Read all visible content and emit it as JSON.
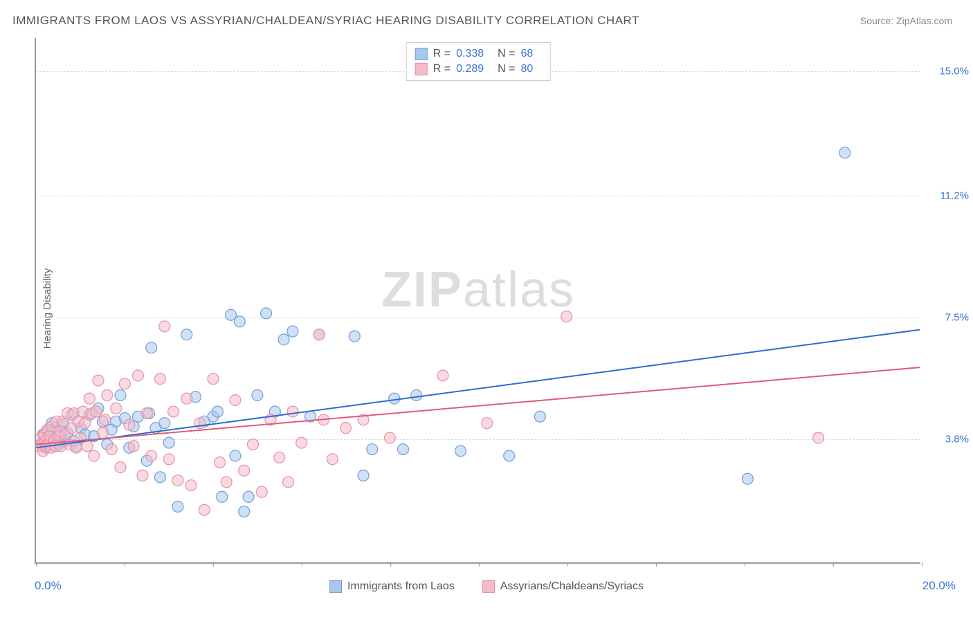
{
  "title": "IMMIGRANTS FROM LAOS VS ASSYRIAN/CHALDEAN/SYRIAC HEARING DISABILITY CORRELATION CHART",
  "source": "Source: ZipAtlas.com",
  "y_axis_label": "Hearing Disability",
  "watermark_zip": "ZIP",
  "watermark_atlas": "atlas",
  "chart": {
    "type": "scatter-with-regression",
    "x_min": 0.0,
    "x_max": 20.0,
    "x_min_label": "0.0%",
    "x_max_label": "20.0%",
    "x_ticks": [
      0,
      2,
      4,
      6,
      8,
      10,
      12,
      14,
      16,
      18,
      20
    ],
    "y_min": 0.0,
    "y_max": 16.0,
    "y_gridlines": [
      3.8,
      7.5,
      11.2,
      15.0
    ],
    "y_tick_labels": [
      "3.8%",
      "7.5%",
      "11.2%",
      "15.0%"
    ],
    "background_color": "#ffffff",
    "grid_color": "#dddddd",
    "axis_color": "#999999",
    "marker_radius": 8,
    "marker_opacity": 0.55,
    "line_width": 2,
    "series": [
      {
        "name": "Immigrants from Laos",
        "color_fill": "#a9c7ec",
        "color_stroke": "#6f9fd8",
        "line_color": "#2d6cd2",
        "R": "0.338",
        "N": "68",
        "regression": {
          "x1": 0.0,
          "y1": 3.5,
          "x2": 20.0,
          "y2": 7.1
        },
        "points": [
          [
            0.1,
            3.6
          ],
          [
            0.15,
            3.9
          ],
          [
            0.2,
            3.5
          ],
          [
            0.25,
            4.0
          ],
          [
            0.3,
            3.7
          ],
          [
            0.35,
            4.25
          ],
          [
            0.4,
            3.6
          ],
          [
            0.45,
            4.1
          ],
          [
            0.5,
            3.6
          ],
          [
            0.55,
            3.85
          ],
          [
            0.6,
            4.2
          ],
          [
            0.65,
            3.7
          ],
          [
            0.7,
            3.95
          ],
          [
            0.8,
            4.5
          ],
          [
            0.85,
            3.7
          ],
          [
            0.9,
            3.55
          ],
          [
            1.0,
            4.1
          ],
          [
            1.1,
            3.9
          ],
          [
            1.2,
            4.5
          ],
          [
            1.3,
            3.85
          ],
          [
            1.4,
            4.7
          ],
          [
            1.5,
            4.3
          ],
          [
            1.6,
            3.6
          ],
          [
            1.7,
            4.05
          ],
          [
            1.8,
            4.3
          ],
          [
            1.9,
            5.1
          ],
          [
            2.0,
            4.4
          ],
          [
            2.1,
            3.5
          ],
          [
            2.2,
            4.15
          ],
          [
            2.3,
            4.45
          ],
          [
            2.5,
            3.1
          ],
          [
            2.55,
            4.55
          ],
          [
            2.6,
            6.55
          ],
          [
            2.7,
            4.1
          ],
          [
            2.8,
            2.6
          ],
          [
            2.9,
            4.25
          ],
          [
            3.0,
            3.65
          ],
          [
            3.2,
            1.7
          ],
          [
            3.4,
            6.95
          ],
          [
            3.6,
            5.05
          ],
          [
            3.8,
            4.3
          ],
          [
            4.0,
            4.45
          ],
          [
            4.1,
            4.6
          ],
          [
            4.2,
            2.0
          ],
          [
            4.4,
            7.55
          ],
          [
            4.5,
            3.25
          ],
          [
            4.6,
            7.35
          ],
          [
            4.7,
            1.55
          ],
          [
            4.8,
            2.0
          ],
          [
            5.0,
            5.1
          ],
          [
            5.2,
            7.6
          ],
          [
            5.4,
            4.6
          ],
          [
            5.6,
            6.8
          ],
          [
            5.8,
            7.05
          ],
          [
            6.2,
            4.45
          ],
          [
            6.4,
            6.95
          ],
          [
            7.2,
            6.9
          ],
          [
            7.4,
            2.65
          ],
          [
            7.6,
            3.45
          ],
          [
            8.1,
            5.0
          ],
          [
            8.3,
            3.45
          ],
          [
            8.6,
            5.1
          ],
          [
            9.6,
            3.4
          ],
          [
            10.7,
            3.25
          ],
          [
            11.4,
            4.45
          ],
          [
            16.1,
            2.55
          ],
          [
            18.3,
            12.5
          ]
        ]
      },
      {
        "name": "Assyrians/Chaldeans/Syriacs",
        "color_fill": "#f4bcc8",
        "color_stroke": "#e98fa5",
        "line_color": "#e05a7e",
        "R": "0.289",
        "N": "80",
        "regression": {
          "x1": 0.0,
          "y1": 3.6,
          "x2": 20.0,
          "y2": 5.95
        },
        "points": [
          [
            0.05,
            3.55
          ],
          [
            0.1,
            3.8
          ],
          [
            0.12,
            3.6
          ],
          [
            0.15,
            3.4
          ],
          [
            0.18,
            3.9
          ],
          [
            0.2,
            3.7
          ],
          [
            0.22,
            3.55
          ],
          [
            0.25,
            4.05
          ],
          [
            0.28,
            3.6
          ],
          [
            0.3,
            3.85
          ],
          [
            0.33,
            3.5
          ],
          [
            0.35,
            4.15
          ],
          [
            0.4,
            3.7
          ],
          [
            0.43,
            3.55
          ],
          [
            0.45,
            4.3
          ],
          [
            0.5,
            3.85
          ],
          [
            0.53,
            4.0
          ],
          [
            0.55,
            3.55
          ],
          [
            0.6,
            4.3
          ],
          [
            0.65,
            3.9
          ],
          [
            0.7,
            4.55
          ],
          [
            0.75,
            3.6
          ],
          [
            0.8,
            4.1
          ],
          [
            0.85,
            4.55
          ],
          [
            0.9,
            3.5
          ],
          [
            0.95,
            4.3
          ],
          [
            1.0,
            3.8
          ],
          [
            1.05,
            4.6
          ],
          [
            1.1,
            4.25
          ],
          [
            1.15,
            3.55
          ],
          [
            1.2,
            5.0
          ],
          [
            1.25,
            4.55
          ],
          [
            1.3,
            3.25
          ],
          [
            1.35,
            4.6
          ],
          [
            1.4,
            5.55
          ],
          [
            1.5,
            3.95
          ],
          [
            1.55,
            4.35
          ],
          [
            1.6,
            5.1
          ],
          [
            1.7,
            3.45
          ],
          [
            1.8,
            4.7
          ],
          [
            1.9,
            2.9
          ],
          [
            2.0,
            5.45
          ],
          [
            2.1,
            4.2
          ],
          [
            2.2,
            3.55
          ],
          [
            2.3,
            5.7
          ],
          [
            2.4,
            2.65
          ],
          [
            2.5,
            4.55
          ],
          [
            2.6,
            3.25
          ],
          [
            2.8,
            5.6
          ],
          [
            2.9,
            7.2
          ],
          [
            3.0,
            3.15
          ],
          [
            3.1,
            4.6
          ],
          [
            3.2,
            2.5
          ],
          [
            3.4,
            5.0
          ],
          [
            3.5,
            2.35
          ],
          [
            3.7,
            4.25
          ],
          [
            3.8,
            1.6
          ],
          [
            4.0,
            5.6
          ],
          [
            4.15,
            3.05
          ],
          [
            4.3,
            2.45
          ],
          [
            4.5,
            4.95
          ],
          [
            4.7,
            2.8
          ],
          [
            4.9,
            3.6
          ],
          [
            5.1,
            2.15
          ],
          [
            5.3,
            4.35
          ],
          [
            5.5,
            3.2
          ],
          [
            5.7,
            2.45
          ],
          [
            5.8,
            4.6
          ],
          [
            6.0,
            3.65
          ],
          [
            6.4,
            6.95
          ],
          [
            6.5,
            4.35
          ],
          [
            6.7,
            3.15
          ],
          [
            7.0,
            4.1
          ],
          [
            7.4,
            4.35
          ],
          [
            8.0,
            3.8
          ],
          [
            9.2,
            5.7
          ],
          [
            10.2,
            4.25
          ],
          [
            12.0,
            7.5
          ],
          [
            17.7,
            3.8
          ]
        ]
      }
    ]
  },
  "stats_label_R": "R =",
  "stats_label_N": "N ="
}
